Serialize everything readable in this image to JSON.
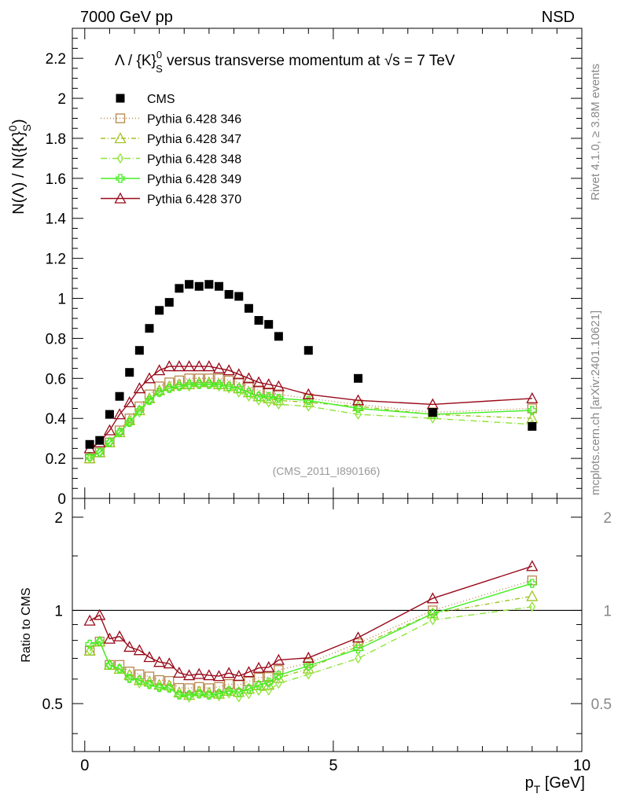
{
  "header": {
    "left": "7000 GeV pp",
    "right": "NSD"
  },
  "side": {
    "rivet": "Rivet 4.1.0, ≥ 3.8M events",
    "source": "mcplots.cern.ch [arXiv:2401.10621]"
  },
  "chart_data": {
    "type": "line",
    "title_parts": {
      "pre": "Λ / {K}",
      "sup": "0",
      "sub": "S",
      "mid": " versus transverse momentum at ",
      "sqrt": "√s",
      "post": " = 7 TeV"
    },
    "watermark": "(CMS_2011_I890166)",
    "ylabel_parts": {
      "pre": "N(Λ)  /  N({K}",
      "sup": "0",
      "sub": "S",
      "post": ")"
    },
    "xlabel_parts": {
      "pre": "p",
      "sub": "T",
      "post": " [GeV]"
    },
    "ratio_ylabel": "Ratio to CMS",
    "xlim": [
      -0.25,
      10.0
    ],
    "ylim": [
      0,
      2.35
    ],
    "ratio_ylim": [
      0.35,
      2.3
    ],
    "x_ticks": [
      "0",
      "5",
      "10"
    ],
    "y_ticks": [
      "0",
      "0.2",
      "0.4",
      "0.6",
      "0.8",
      "1",
      "1.2",
      "1.4",
      "1.6",
      "1.8",
      "2",
      "2.2"
    ],
    "ratio_ticks": [
      "0.5",
      "1",
      "2"
    ],
    "x": [
      0.1,
      0.3,
      0.5,
      0.7,
      0.9,
      1.1,
      1.3,
      1.5,
      1.7,
      1.9,
      2.1,
      2.3,
      2.5,
      2.7,
      2.9,
      3.1,
      3.3,
      3.5,
      3.7,
      3.9,
      4.5,
      5.5,
      7.0,
      9.0
    ],
    "data": {
      "name": "CMS",
      "x": [
        0.1,
        0.3,
        0.5,
        0.7,
        0.9,
        1.1,
        1.3,
        1.5,
        1.7,
        1.9,
        2.1,
        2.3,
        2.5,
        2.7,
        2.9,
        3.1,
        3.3,
        3.5,
        3.7,
        3.9,
        4.5,
        5.5,
        7.0,
        9.0
      ],
      "values": [
        0.27,
        0.29,
        0.42,
        0.51,
        0.63,
        0.74,
        0.85,
        0.94,
        0.98,
        1.05,
        1.07,
        1.06,
        1.07,
        1.06,
        1.02,
        1.01,
        0.95,
        0.89,
        0.87,
        0.81,
        0.74,
        0.6,
        0.43,
        0.36
      ],
      "color": "#000000"
    },
    "series": [
      {
        "name": "Pythia 6.428 346",
        "color": "#b8864b",
        "dash": "1,3",
        "marker": "square",
        "values": [
          0.2,
          0.23,
          0.28,
          0.34,
          0.4,
          0.46,
          0.52,
          0.56,
          0.58,
          0.59,
          0.6,
          0.6,
          0.6,
          0.6,
          0.59,
          0.58,
          0.56,
          0.54,
          0.53,
          0.52,
          0.5,
          0.47,
          0.43,
          0.45
        ]
      },
      {
        "name": "Pythia 6.428 347",
        "color": "#9fc423",
        "dash": "6,3,1,3",
        "marker": "triangle",
        "values": [
          0.2,
          0.23,
          0.28,
          0.33,
          0.39,
          0.44,
          0.5,
          0.54,
          0.56,
          0.57,
          0.57,
          0.58,
          0.58,
          0.57,
          0.56,
          0.55,
          0.53,
          0.51,
          0.5,
          0.49,
          0.48,
          0.46,
          0.42,
          0.4
        ]
      },
      {
        "name": "Pythia 6.428 348",
        "color": "#8ee43a",
        "dash": "8,3,1,3",
        "marker": "diamond",
        "values": [
          0.2,
          0.23,
          0.28,
          0.33,
          0.38,
          0.43,
          0.49,
          0.53,
          0.55,
          0.56,
          0.56,
          0.57,
          0.57,
          0.56,
          0.55,
          0.53,
          0.51,
          0.49,
          0.48,
          0.47,
          0.46,
          0.42,
          0.4,
          0.37
        ]
      },
      {
        "name": "Pythia 6.428 349",
        "color": "#44ee22",
        "dash": "",
        "marker": "cross",
        "values": [
          0.21,
          0.23,
          0.28,
          0.33,
          0.38,
          0.44,
          0.49,
          0.53,
          0.55,
          0.56,
          0.57,
          0.57,
          0.57,
          0.57,
          0.56,
          0.55,
          0.53,
          0.51,
          0.51,
          0.5,
          0.49,
          0.45,
          0.42,
          0.44
        ]
      },
      {
        "name": "Pythia 6.428 370",
        "color": "#990a1a",
        "dash": "",
        "marker": "triangle",
        "values": [
          0.25,
          0.28,
          0.34,
          0.42,
          0.48,
          0.55,
          0.6,
          0.64,
          0.66,
          0.66,
          0.66,
          0.66,
          0.66,
          0.65,
          0.64,
          0.62,
          0.6,
          0.58,
          0.57,
          0.56,
          0.52,
          0.49,
          0.47,
          0.5
        ]
      }
    ]
  }
}
